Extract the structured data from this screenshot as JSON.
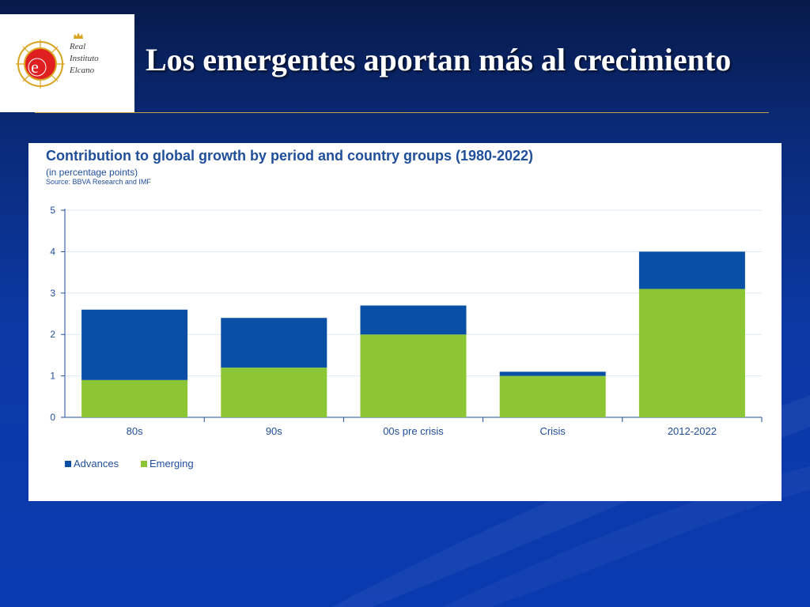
{
  "slide": {
    "title": "Los emergentes aportan más al crecimiento"
  },
  "logo": {
    "emblem_letter": "e",
    "lines": [
      "Real",
      "Instituto",
      "Elcano"
    ]
  },
  "colors": {
    "advances": "#0a4fa6",
    "emerging": "#8cc634",
    "chart_text": "#1f4e9a",
    "gridline": "#dde8f4"
  },
  "chart_data": {
    "type": "bar",
    "stacked": true,
    "title": "Contribution to global growth by period and country groups (1980-2022)",
    "subtitle": "(in percentage points)",
    "source": "Source: BBVA Research and IMF",
    "categories": [
      "80s",
      "90s",
      "00s pre crisis",
      "Crisis",
      "2012-2022"
    ],
    "series": [
      {
        "name": "Emerging",
        "values": [
          0.9,
          1.2,
          2.0,
          1.0,
          3.1
        ]
      },
      {
        "name": "Advances",
        "values": [
          1.7,
          1.2,
          0.7,
          0.1,
          0.9
        ]
      }
    ],
    "legend": [
      "Advances",
      "Emerging"
    ],
    "legend_position": "bottom-left",
    "ylim": [
      0,
      5
    ],
    "yticks": [
      0,
      1,
      2,
      3,
      4,
      5
    ],
    "grid": true,
    "xlabel": "",
    "ylabel": ""
  }
}
